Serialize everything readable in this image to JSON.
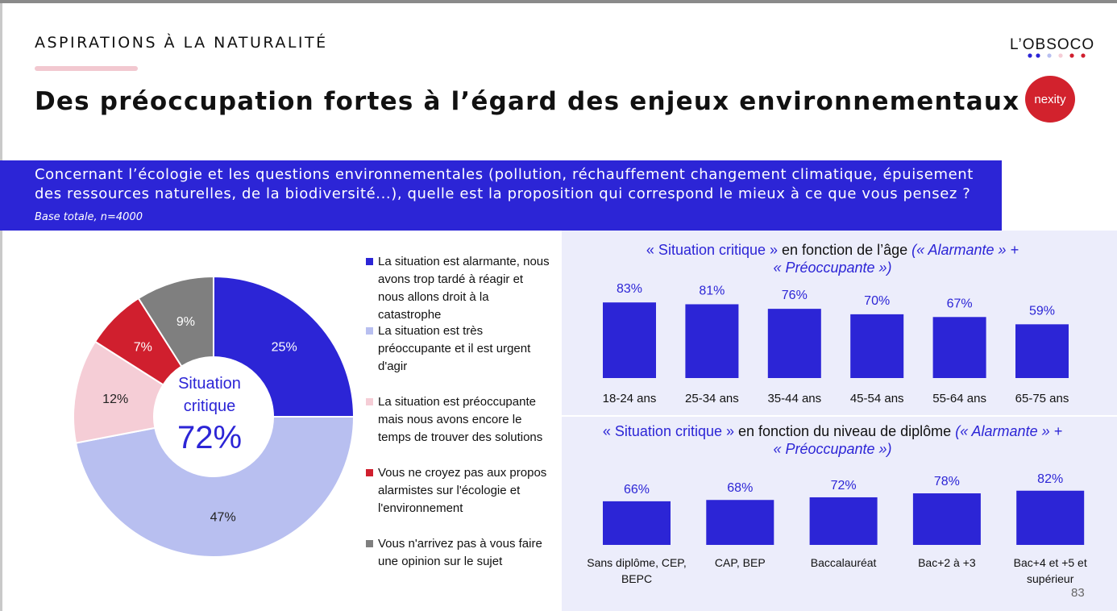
{
  "header": {
    "section": "ASPIRATIONS À LA NATURALITÉ",
    "title": "Des préoccupation fortes à l’égard des enjeux environnementaux",
    "logo_text": "L’OBSOCO",
    "brand_logo": "nexity",
    "accent_color": "#2c25d6"
  },
  "question": {
    "text": "Concernant l’écologie et les questions environnementales (pollution, réchauffement changement climatique, épuisement des ressources naturelles, de la biodiversité...), quelle est la proposition qui correspond le mieux à ce que vous pensez ?",
    "base": "Base totale, n=4000"
  },
  "legend": [
    {
      "text": "La situation est alarmante, nous avons trop tardé à réagir et nous allons droit à la catastrophe",
      "color": "#2c25d6"
    },
    {
      "text": "La situation est très préoccupante et il est urgent d'agir",
      "color": "#b8bff0"
    },
    {
      "text": "La situation est préoccupante mais nous avons encore le temps de trouver des solutions",
      "color": "#f5cdd6"
    },
    {
      "text": "Vous ne croyez pas aux propos alarmistes sur l'écologie et l'environnement",
      "color": "#d01f2e"
    },
    {
      "text": "Vous n'arrivez pas à vous faire une opinion sur le sujet",
      "color": "#7f7f7f"
    }
  ],
  "page_number": "83",
  "chart_data": [
    {
      "type": "pie",
      "variant": "donut",
      "center_label": "Situation critique",
      "center_value": "72%",
      "labels": [
        "La situation est alarmante",
        "La situation est très préoccupante",
        "La situation est préoccupante",
        "Vous ne croyez pas aux propos alarmistes",
        "Vous n'arrivez pas à vous faire une opinion"
      ],
      "values": [
        25,
        47,
        12,
        7,
        9
      ],
      "value_labels": [
        "25%",
        "47%",
        "12%",
        "7%",
        "9%"
      ],
      "colors": [
        "#2c25d6",
        "#b8bff0",
        "#f5cdd6",
        "#d01f2e",
        "#7f7f7f"
      ]
    },
    {
      "type": "bar",
      "title_main": "« Situation critique » en fonction de l’âge",
      "title_note": "(« Alarmante » + « Préoccupante »)",
      "categories": [
        "18-24 ans",
        "25-34 ans",
        "35-44 ans",
        "45-54 ans",
        "55-64 ans",
        "65-75 ans"
      ],
      "values": [
        83,
        81,
        76,
        70,
        67,
        59
      ],
      "value_labels": [
        "83%",
        "81%",
        "76%",
        "70%",
        "67%",
        "59%"
      ],
      "color": "#2c25d6"
    },
    {
      "type": "bar",
      "title_main": "«  Situation critique » en fonction du niveau de diplôme",
      "title_note": "(« Alarmante » + « Préoccupante »)",
      "categories": [
        "Sans diplôme, CEP, BEPC",
        "CAP, BEP",
        "Baccalauréat",
        "Bac+2 à +3",
        "Bac+4 et +5 et supérieur"
      ],
      "values": [
        66,
        68,
        72,
        78,
        82
      ],
      "value_labels": [
        "66%",
        "68%",
        "72%",
        "78%",
        "82%"
      ],
      "color": "#2c25d6"
    }
  ]
}
